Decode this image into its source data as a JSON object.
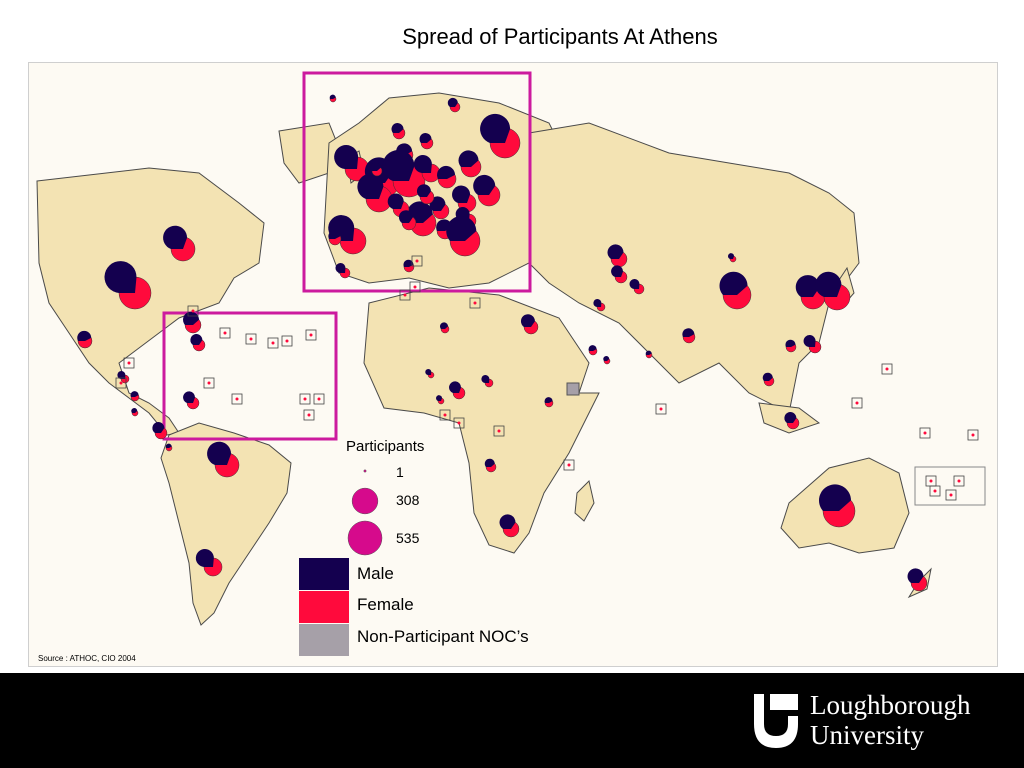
{
  "title": "Spread of Participants At Athens",
  "legend": {
    "title": "Participants",
    "sizes": [
      {
        "label": "1",
        "value": 1
      },
      {
        "label": "308",
        "value": 308
      },
      {
        "label": "535",
        "value": 535
      }
    ],
    "categories": [
      {
        "label": "Male",
        "color": "#14004f"
      },
      {
        "label": "Female",
        "color": "#ff0a3c"
      },
      {
        "label": "Non-Participant NOC’s",
        "color": "#a6a0a8"
      }
    ],
    "size_circle_color": "#d60a8c"
  },
  "source": "Source :  ATHOC, CIO 2004",
  "footer": {
    "logo_line1": "Loughborough",
    "logo_line2": "University"
  },
  "colors": {
    "land": "#f3e3b3",
    "ocean": "#fdfaf3",
    "border": "#4a4a4a",
    "highlight_box": "#cc1a9e",
    "footer_background": "#000000"
  }
}
